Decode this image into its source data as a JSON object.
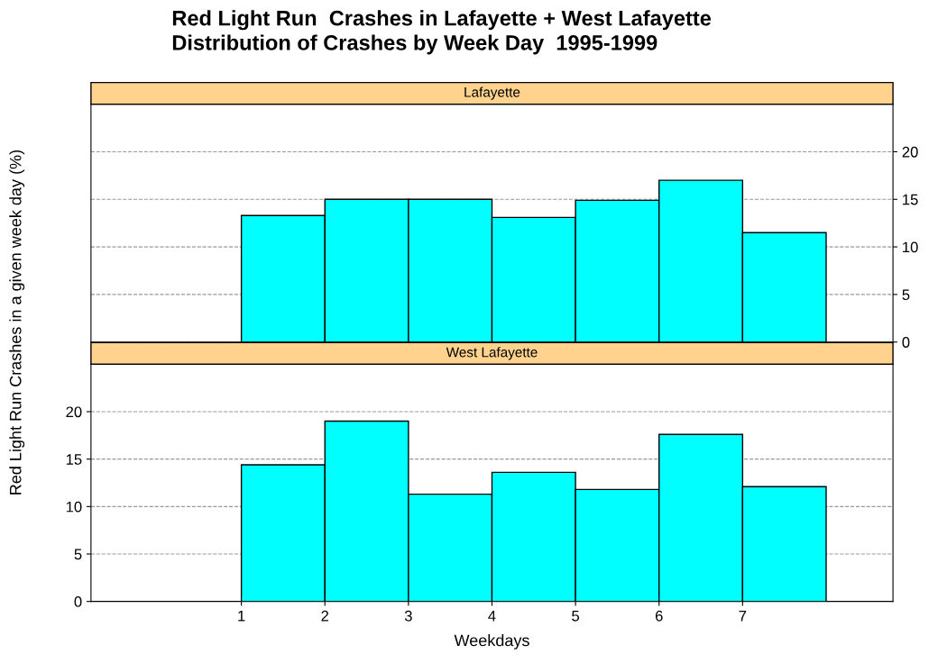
{
  "chart_data": [
    {
      "type": "histogram",
      "title": "Red Light Run  Crashes in Lafayette + West Lafayette\nDistribution of Crashes by Week Day  1995-1999",
      "subtitle": "Lafayette",
      "ylabel": "Red Light Run Crashes in a given week day (%)",
      "bins": [
        1,
        2,
        3,
        4,
        5,
        6,
        7,
        8
      ],
      "values": [
        13.3,
        15.0,
        15.0,
        13.1,
        14.9,
        17.0,
        11.5
      ],
      "color": "#00ffff",
      "xlim": [
        -0.8,
        8.8
      ],
      "ylim": [
        0,
        25
      ],
      "yticks": [
        0,
        5,
        10,
        15,
        20
      ],
      "grid": "y",
      "tick_labels": "y"
    },
    {
      "type": "histogram",
      "subtitle": "West Lafayette",
      "xlabel": "Weekdays",
      "bins": [
        1,
        2,
        3,
        4,
        5,
        6,
        7,
        8
      ],
      "values": [
        14.4,
        19.0,
        11.3,
        13.6,
        11.8,
        17.6,
        12.1
      ],
      "color": "#00ffff",
      "xlim": [
        -0.8,
        8.8
      ],
      "xticks": [
        1,
        2,
        3,
        4,
        5,
        6,
        7
      ],
      "ylim": [
        0,
        25
      ],
      "yticks": [
        0,
        5,
        10,
        15,
        20
      ],
      "grid": "y"
    }
  ]
}
